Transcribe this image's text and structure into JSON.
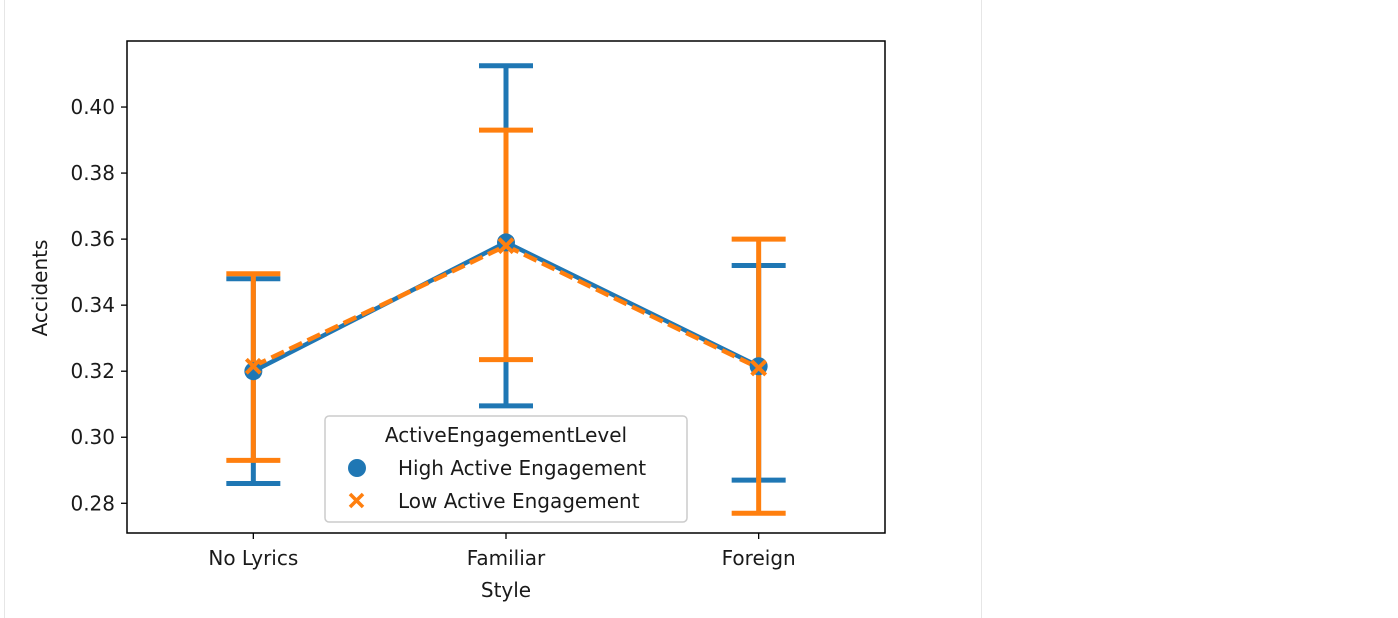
{
  "chart_data": {
    "type": "point",
    "categories": [
      "No Lyrics",
      "Familiar",
      "Foreign"
    ],
    "xlabel": "Style",
    "ylabel": "Accidents",
    "ylim": [
      0.271,
      0.42
    ],
    "yticks": [
      "0.28",
      "0.30",
      "0.32",
      "0.34",
      "0.36",
      "0.38",
      "0.40"
    ],
    "grid": false,
    "legend": {
      "title": "ActiveEngagementLevel",
      "placement": "lower-center"
    },
    "series": [
      {
        "name": "High Active Engagement",
        "marker": "circle",
        "linestyle": "solid",
        "color": "#1f77b4",
        "values": [
          0.32,
          0.359,
          0.3215
        ],
        "ci_low": [
          0.286,
          0.3095,
          0.287
        ],
        "ci_high": [
          0.348,
          0.4125,
          0.352
        ]
      },
      {
        "name": "Low Active Engagement",
        "marker": "x",
        "linestyle": "dashed",
        "color": "#ff7f0e",
        "values": [
          0.3215,
          0.358,
          0.321
        ],
        "ci_low": [
          0.293,
          0.3235,
          0.277
        ],
        "ci_high": [
          0.3495,
          0.393,
          0.36
        ]
      }
    ]
  }
}
